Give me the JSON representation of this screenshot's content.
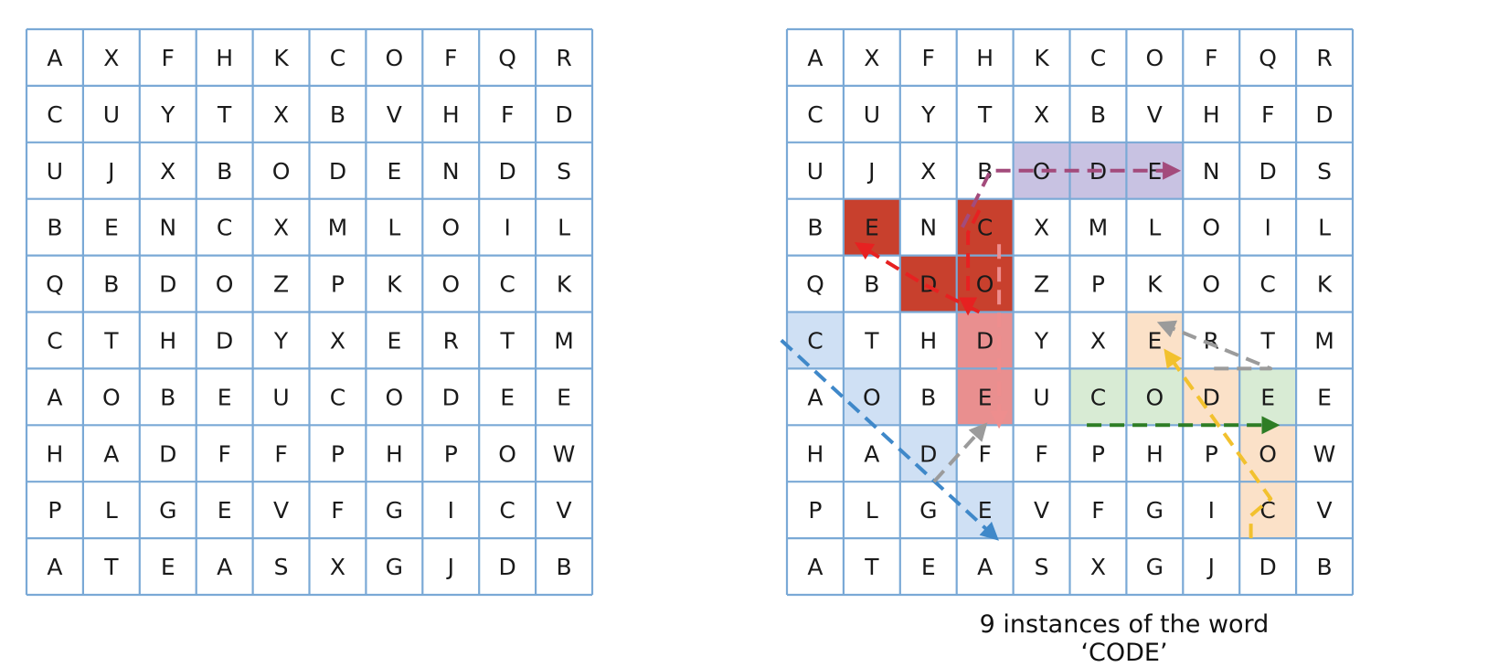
{
  "grid": [
    [
      "A",
      "X",
      "F",
      "H",
      "K",
      "C",
      "O",
      "F",
      "Q",
      "R"
    ],
    [
      "C",
      "U",
      "Y",
      "T",
      "X",
      "B",
      "V",
      "H",
      "F",
      "D"
    ],
    [
      "U",
      "J",
      "X",
      "B",
      "O",
      "D",
      "E",
      "N",
      "D",
      "S"
    ],
    [
      "B",
      "E",
      "N",
      "C",
      "X",
      "M",
      "L",
      "O",
      "I",
      "L"
    ],
    [
      "Q",
      "B",
      "D",
      "O",
      "Z",
      "P",
      "K",
      "O",
      "C",
      "K"
    ],
    [
      "C",
      "T",
      "H",
      "D",
      "Y",
      "X",
      "E",
      "R",
      "T",
      "M"
    ],
    [
      "A",
      "O",
      "B",
      "E",
      "U",
      "C",
      "O",
      "D",
      "E",
      "E"
    ],
    [
      "H",
      "A",
      "D",
      "F",
      "F",
      "P",
      "H",
      "P",
      "O",
      "W"
    ],
    [
      "P",
      "L",
      "G",
      "E",
      "V",
      "F",
      "G",
      "I",
      "C",
      "V"
    ],
    [
      "A",
      "T",
      "E",
      "A",
      "S",
      "X",
      "G",
      "J",
      "D",
      "B"
    ]
  ],
  "caption": "9 instances of the word ‘CODE’",
  "colors": {
    "grid_line": "#7aa9d6",
    "text": "#1a1a1a"
  },
  "highlights": [
    {
      "word_index": 1,
      "color": "#c8c2e2",
      "cells": [
        [
          2,
          4
        ],
        [
          2,
          5
        ],
        [
          2,
          6
        ]
      ]
    },
    {
      "word_index": 2,
      "color": "#c8402d",
      "cells": [
        [
          3,
          1
        ],
        [
          4,
          2
        ],
        [
          3,
          3
        ],
        [
          4,
          3
        ]
      ]
    },
    {
      "word_index": 3,
      "color": "#e98f8f",
      "cells": [
        [
          5,
          3
        ],
        [
          6,
          3
        ]
      ]
    },
    {
      "word_index": 4,
      "color": "#cfe0f4",
      "cells": [
        [
          5,
          0
        ],
        [
          6,
          1
        ],
        [
          7,
          2
        ],
        [
          8,
          3
        ]
      ]
    },
    {
      "word_index": 5,
      "color": "#d8ebd4",
      "cells": [
        [
          6,
          5
        ],
        [
          6,
          6
        ],
        [
          6,
          8
        ]
      ]
    },
    {
      "word_index": 6,
      "color": "#fbe1c8",
      "cells": [
        [
          5,
          6
        ],
        [
          6,
          7
        ],
        [
          7,
          8
        ],
        [
          8,
          8
        ]
      ]
    }
  ],
  "arrows": [
    {
      "color": "#a34b7c",
      "path": [
        [
          3.1,
          3.5
        ],
        [
          3.6,
          2.5
        ],
        [
          6.9,
          2.5
        ]
      ]
    },
    {
      "color": "#e62121",
      "path": [
        [
          3.4,
          5.0
        ],
        [
          2.4,
          4.5
        ],
        [
          1.25,
          3.8
        ]
      ]
    },
    {
      "color": "#e62121",
      "path": [
        [
          3.4,
          3.2
        ],
        [
          3.2,
          3.6
        ],
        [
          3.2,
          5.0
        ]
      ]
    },
    {
      "color": "#ee8e8e",
      "path": [
        [
          3.75,
          3.8
        ],
        [
          3.75,
          7.0
        ]
      ]
    },
    {
      "color": "#3f88c9",
      "path": [
        [
          -0.1,
          5.5
        ],
        [
          3.7,
          9.0
        ]
      ]
    },
    {
      "color": "#9b9b9b",
      "path": [
        [
          2.6,
          8.0
        ],
        [
          3.5,
          7.0
        ]
      ]
    },
    {
      "color": "#9b9b9b",
      "path": [
        [
          7.55,
          6.0
        ],
        [
          8.55,
          6.0
        ],
        [
          6.6,
          5.2
        ]
      ]
    },
    {
      "color": "#2e7d25",
      "path": [
        [
          5.3,
          7.0
        ],
        [
          8.65,
          7.0
        ]
      ]
    },
    {
      "color": "#f2c12e",
      "path": [
        [
          8.2,
          9.0
        ],
        [
          8.2,
          8.6
        ],
        [
          8.55,
          8.3
        ],
        [
          6.7,
          5.7
        ]
      ]
    }
  ]
}
